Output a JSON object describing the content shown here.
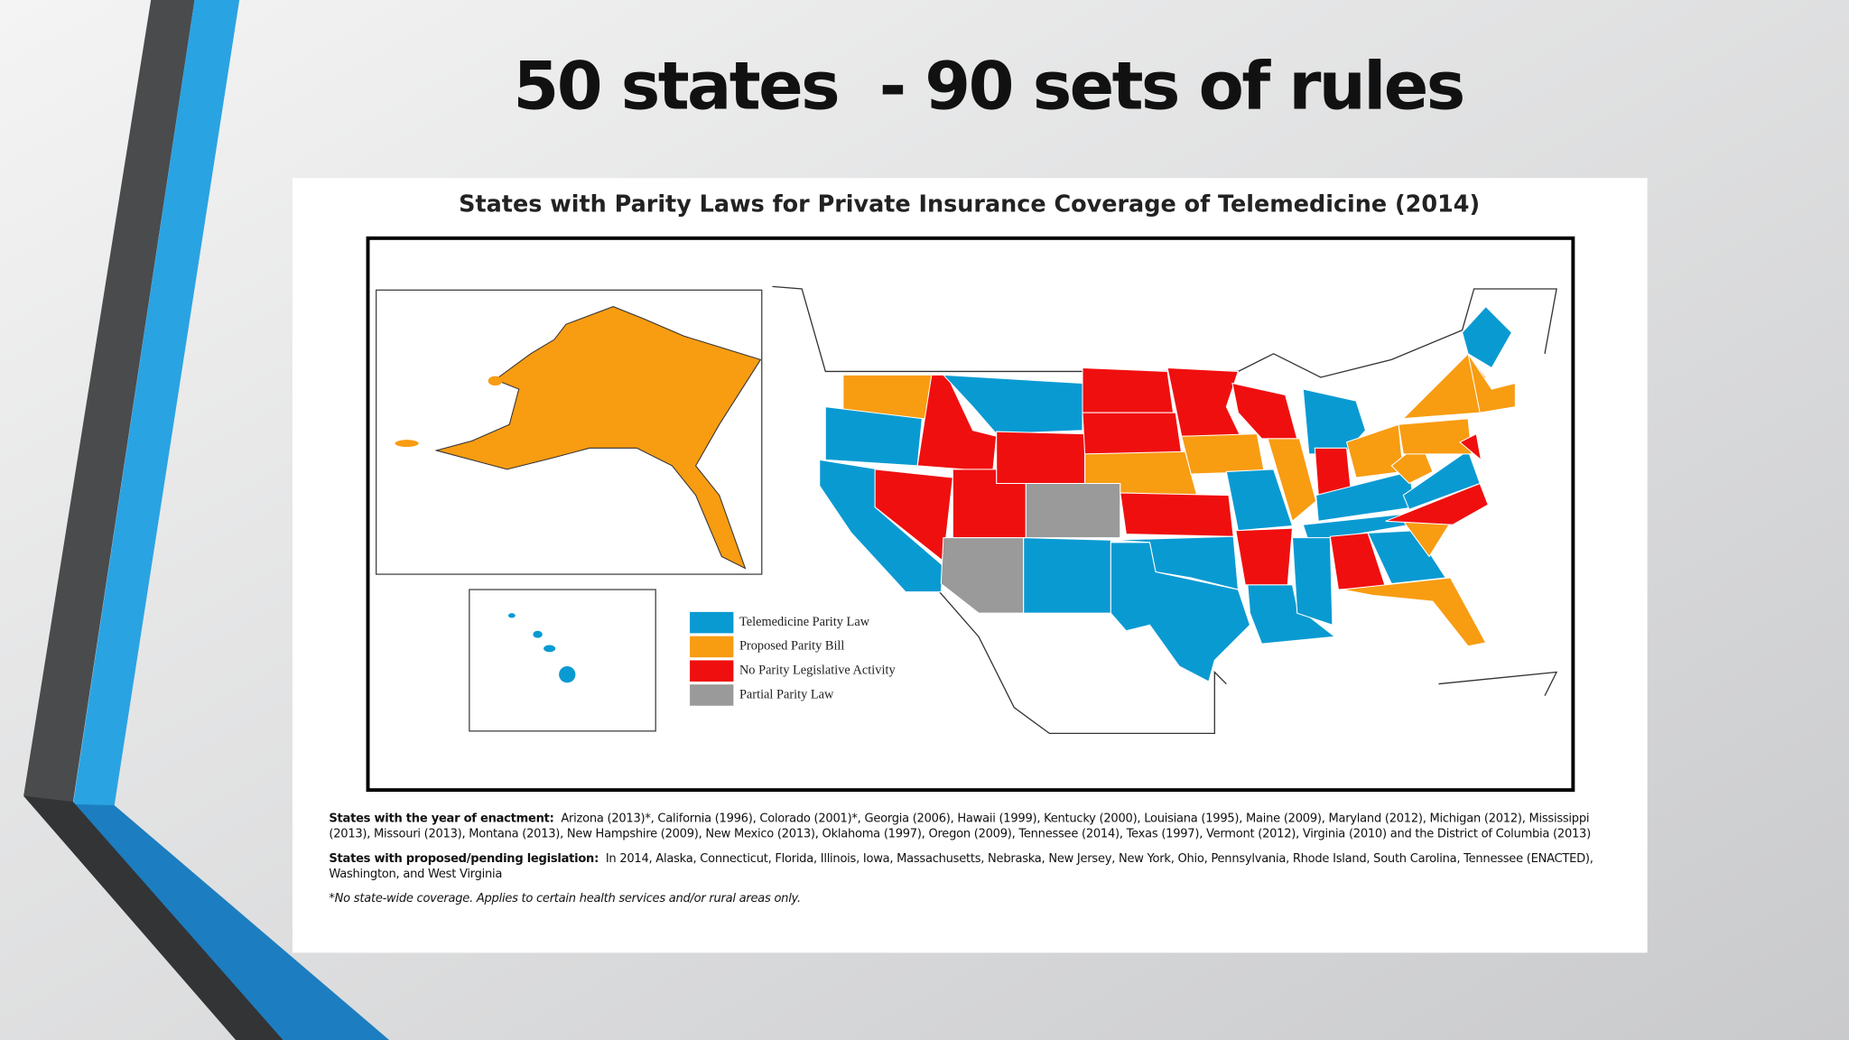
{
  "slide_title": "50 states  - 90 sets of rules",
  "map": {
    "title": "States with Parity Laws for Private Insurance Coverage of Telemedicine (2014)",
    "legend": [
      {
        "label": "Telemedicine Parity Law",
        "color": "#0a9ad2"
      },
      {
        "label": "Proposed Parity Bill",
        "color": "#f89c12"
      },
      {
        "label": "No Parity Legislative Activity",
        "color": "#f00f0f"
      },
      {
        "label": "Partial Parity Law",
        "color": "#9a9a9a"
      }
    ]
  },
  "notes": [
    {
      "heading": "States with the year of enactment:",
      "text": "Arizona (2013)*, California (1996), Colorado (2001)*, Georgia (2006), Hawaii (1999), Kentucky (2000), Louisiana (1995), Maine (2009), Maryland (2012), Michigan (2012), Mississippi (2013), Missouri (2013), Montana (2013), New Hampshire (2009), New Mexico (2013), Oklahoma (1997), Oregon (2009), Tennessee (2014), Texas (1997), Vermont (2012), Virginia (2010) and the District of Columbia (2013)"
    },
    {
      "heading": "States with proposed/pending  legislation:",
      "text": "In 2014, Alaska, Connecticut, Florida, Illinois, Iowa, Massachusetts, Nebraska, New Jersey, New York, Ohio, Pennsylvania, Rhode Island, South Carolina, Tennessee (ENACTED), Washington, and West Virginia"
    }
  ],
  "footnote": "*No state-wide coverage.  Applies to certain health services and/or rural areas only."
}
